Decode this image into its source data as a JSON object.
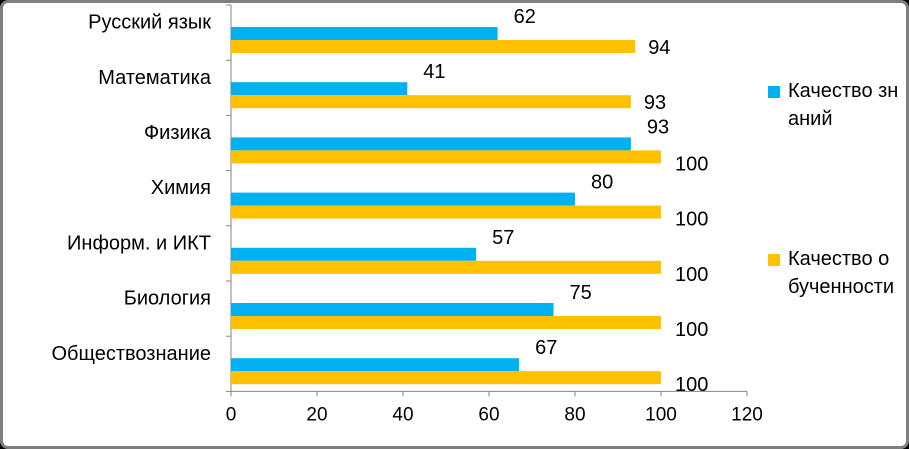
{
  "chart_data": {
    "type": "bar",
    "orientation": "horizontal",
    "categories": [
      "Русский язык",
      "Математика",
      "Физика",
      "Химия",
      "Информ. и ИКТ",
      "Биология",
      "Обществознание"
    ],
    "series": [
      {
        "name": "Качество знаний",
        "color": "#00B0F0",
        "values": [
          62,
          41,
          93,
          80,
          57,
          75,
          67
        ]
      },
      {
        "name": "Качество обученности",
        "color": "#FFC000",
        "values": [
          94,
          93,
          100,
          100,
          100,
          100,
          100
        ]
      }
    ],
    "xlim": [
      0,
      120
    ],
    "xticks": [
      "0",
      "20",
      "40",
      "60",
      "80",
      "100",
      "120"
    ],
    "grid": false,
    "legend_position": "right"
  }
}
